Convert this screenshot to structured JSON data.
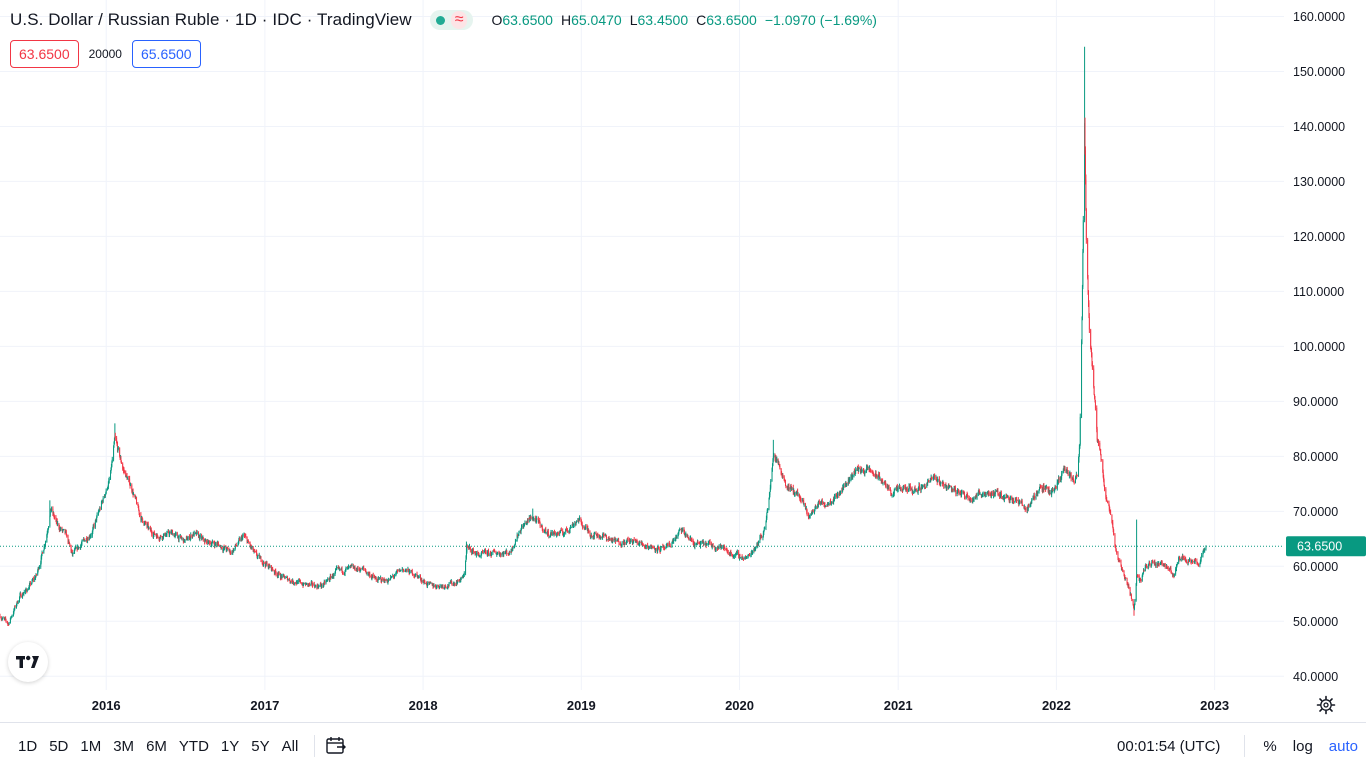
{
  "legend": {
    "title": "U.S. Dollar / Russian Ruble · 1D · IDC · TradingView",
    "delay_icon": "≈",
    "ohlc": {
      "o_key": "O",
      "o_val": "63.6500",
      "h_key": "H",
      "h_val": "65.0470",
      "l_key": "L",
      "l_val": "63.4500",
      "c_key": "C",
      "c_val": "63.6500",
      "change": "−1.0970 (−1.69%)"
    }
  },
  "trading": {
    "bid": "63.6500",
    "spread": "20000",
    "ask": "65.6500"
  },
  "colors": {
    "up": "#089981",
    "down": "#f23645",
    "grid": "#f0f3fa",
    "accent": "#2962ff"
  },
  "icons": {
    "logo": "tradingview-logo-icon",
    "settings": "gear-icon",
    "compare": "date-range-icon"
  },
  "chart_data": {
    "type": "candlestick",
    "symbol": "USD/RUB",
    "interval": "1D",
    "ylim": [
      37.5,
      163
    ],
    "y_ticks": [
      "160.0000",
      "150.0000",
      "140.0000",
      "130.0000",
      "120.0000",
      "110.0000",
      "100.0000",
      "90.0000",
      "80.0000",
      "70.0000",
      "60.0000",
      "50.0000",
      "40.0000"
    ],
    "x_ticks": [
      "2016",
      "2017",
      "2018",
      "2019",
      "2020",
      "2021",
      "2022",
      "2023"
    ],
    "last_price": 63.65,
    "last_price_label": "63.6500",
    "x_start": "2015-05-01",
    "x_end": "2023-06-10",
    "data_end": "2022-12-12",
    "keypoints": [
      [
        "2015-05-01",
        51.0
      ],
      [
        "2015-05-20",
        49.5
      ],
      [
        "2015-06-15",
        54.5
      ],
      [
        "2015-07-05",
        56.0
      ],
      [
        "2015-07-25",
        58.5
      ],
      [
        "2015-08-15",
        65.0
      ],
      [
        "2015-08-26",
        70.5
      ],
      [
        "2015-09-10",
        67.5
      ],
      [
        "2015-10-01",
        65.5
      ],
      [
        "2015-10-15",
        62.0
      ],
      [
        "2015-11-10",
        64.5
      ],
      [
        "2015-12-01",
        66.5
      ],
      [
        "2015-12-20",
        71.0
      ],
      [
        "2016-01-10",
        76.0
      ],
      [
        "2016-01-21",
        83.0
      ],
      [
        "2016-02-10",
        77.5
      ],
      [
        "2016-03-01",
        74.0
      ],
      [
        "2016-03-20",
        69.0
      ],
      [
        "2016-04-10",
        66.5
      ],
      [
        "2016-05-01",
        65.5
      ],
      [
        "2016-06-01",
        66.0
      ],
      [
        "2016-07-01",
        64.5
      ],
      [
        "2016-07-20",
        66.0
      ],
      [
        "2016-08-15",
        64.5
      ],
      [
        "2016-09-15",
        64.0
      ],
      [
        "2016-10-15",
        62.5
      ],
      [
        "2016-11-14",
        65.5
      ],
      [
        "2016-12-10",
        62.0
      ],
      [
        "2017-01-10",
        60.0
      ],
      [
        "2017-02-10",
        58.0
      ],
      [
        "2017-03-20",
        57.0
      ],
      [
        "2017-04-15",
        56.5
      ],
      [
        "2017-05-15",
        56.5
      ],
      [
        "2017-06-15",
        59.0
      ],
      [
        "2017-07-15",
        59.5
      ],
      [
        "2017-08-15",
        59.5
      ],
      [
        "2017-09-15",
        57.5
      ],
      [
        "2017-10-15",
        57.5
      ],
      [
        "2017-11-15",
        59.5
      ],
      [
        "2017-12-15",
        58.5
      ],
      [
        "2018-01-15",
        56.5
      ],
      [
        "2018-02-15",
        56.5
      ],
      [
        "2018-03-15",
        57.0
      ],
      [
        "2018-04-05",
        58.0
      ],
      [
        "2018-04-12",
        63.5
      ],
      [
        "2018-05-10",
        62.0
      ],
      [
        "2018-06-20",
        62.5
      ],
      [
        "2018-07-20",
        62.5
      ],
      [
        "2018-08-15",
        67.0
      ],
      [
        "2018-09-10",
        69.0
      ],
      [
        "2018-10-15",
        66.0
      ],
      [
        "2018-11-20",
        66.0
      ],
      [
        "2018-12-25",
        68.5
      ],
      [
        "2019-01-20",
        66.0
      ],
      [
        "2019-02-20",
        65.5
      ],
      [
        "2019-03-20",
        64.5
      ],
      [
        "2019-05-01",
        64.5
      ],
      [
        "2019-06-15",
        63.5
      ],
      [
        "2019-07-15",
        63.0
      ],
      [
        "2019-08-20",
        66.5
      ],
      [
        "2019-09-20",
        64.0
      ],
      [
        "2019-10-20",
        64.0
      ],
      [
        "2019-11-20",
        63.5
      ],
      [
        "2019-12-20",
        62.0
      ],
      [
        "2020-01-20",
        61.5
      ],
      [
        "2020-02-25",
        66.0
      ],
      [
        "2020-03-10",
        72.5
      ],
      [
        "2020-03-19",
        80.5
      ],
      [
        "2020-04-01",
        78.5
      ],
      [
        "2020-04-20",
        74.5
      ],
      [
        "2020-05-15",
        73.0
      ],
      [
        "2020-06-10",
        69.0
      ],
      [
        "2020-07-01",
        71.5
      ],
      [
        "2020-07-20",
        71.5
      ],
      [
        "2020-08-20",
        73.5
      ],
      [
        "2020-09-25",
        77.5
      ],
      [
        "2020-10-25",
        77.5
      ],
      [
        "2020-11-20",
        76.0
      ],
      [
        "2020-12-15",
        73.5
      ],
      [
        "2021-01-15",
        74.0
      ],
      [
        "2021-02-15",
        74.0
      ],
      [
        "2021-03-25",
        76.0
      ],
      [
        "2021-04-15",
        75.0
      ],
      [
        "2021-05-20",
        73.5
      ],
      [
        "2021-06-20",
        72.5
      ],
      [
        "2021-07-20",
        73.5
      ],
      [
        "2021-08-20",
        73.0
      ],
      [
        "2021-09-20",
        72.5
      ],
      [
        "2021-10-25",
        70.5
      ],
      [
        "2021-11-25",
        74.5
      ],
      [
        "2021-12-20",
        73.5
      ],
      [
        "2022-01-20",
        77.5
      ],
      [
        "2022-02-10",
        75.5
      ],
      [
        "2022-02-18",
        76.5
      ],
      [
        "2022-02-24",
        82.0
      ],
      [
        "2022-03-01",
        105.0
      ],
      [
        "2022-03-07",
        140.0
      ],
      [
        "2022-03-11",
        120.0
      ],
      [
        "2022-03-18",
        104.0
      ],
      [
        "2022-03-25",
        96.0
      ],
      [
        "2022-04-05",
        83.0
      ],
      [
        "2022-04-12",
        80.5
      ],
      [
        "2022-04-25",
        73.0
      ],
      [
        "2022-05-10",
        68.0
      ],
      [
        "2022-05-20",
        62.0
      ],
      [
        "2022-06-10",
        58.0
      ],
      [
        "2022-06-29",
        52.5
      ],
      [
        "2022-07-05",
        58.5
      ],
      [
        "2022-07-15",
        57.0
      ],
      [
        "2022-07-25",
        60.0
      ],
      [
        "2022-08-10",
        60.5
      ],
      [
        "2022-09-01",
        60.5
      ],
      [
        "2022-09-15",
        60.0
      ],
      [
        "2022-09-28",
        58.0
      ],
      [
        "2022-10-10",
        62.0
      ],
      [
        "2022-10-25",
        61.5
      ],
      [
        "2022-11-10",
        61.0
      ],
      [
        "2022-11-25",
        60.5
      ],
      [
        "2022-12-05",
        62.0
      ],
      [
        "2022-12-12",
        63.65
      ]
    ],
    "spikes": [
      [
        "2015-08-24",
        72.0
      ],
      [
        "2016-01-21",
        86.0
      ],
      [
        "2018-04-11",
        64.5
      ],
      [
        "2018-09-11",
        70.5
      ],
      [
        "2020-03-19",
        83.0
      ],
      [
        "2022-03-07",
        154.5
      ],
      [
        "2022-06-29",
        51.0
      ],
      [
        "2022-07-05",
        68.5
      ]
    ]
  },
  "bottom_bar": {
    "ranges": [
      "1D",
      "5D",
      "1M",
      "3M",
      "6M",
      "YTD",
      "1Y",
      "5Y",
      "All"
    ],
    "clock": "00:01:54 (UTC)",
    "percent": "%",
    "log": "log",
    "auto": "auto"
  }
}
